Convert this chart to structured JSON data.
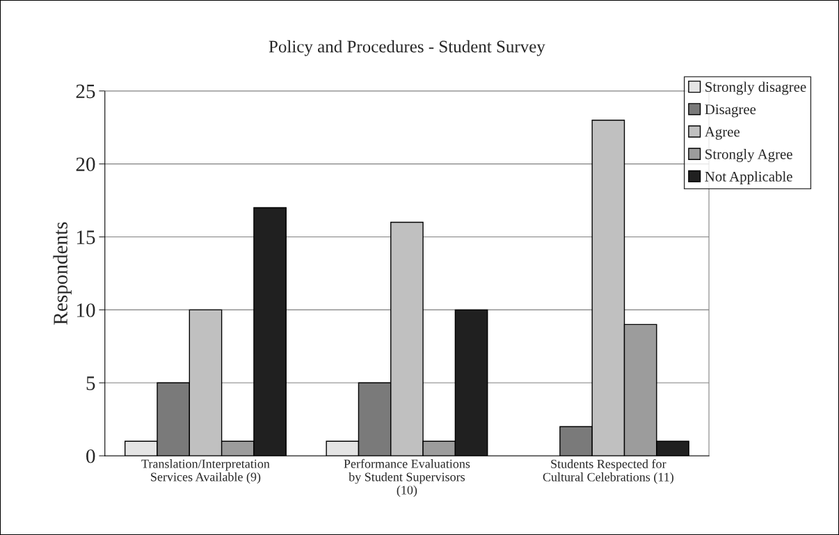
{
  "chart_data": {
    "type": "bar",
    "title": "Policy and Procedures - Student Survey",
    "ylabel": "Respondents",
    "categories": [
      "Translation/Interpretation\nServices Available (9)",
      "Performance Evaluations\nby Student Supervisors\n(10)",
      "Students Respected for\nCultural Celebrations (11)"
    ],
    "series": [
      {
        "name": "Strongly disagree",
        "color": "#e4e4e4",
        "values": [
          1,
          1,
          null
        ]
      },
      {
        "name": "Disagree",
        "color": "#7a7a7a",
        "values": [
          5,
          5,
          2
        ]
      },
      {
        "name": "Agree",
        "color": "#c0c0c0",
        "values": [
          10,
          16,
          23
        ]
      },
      {
        "name": "Strongly Agree",
        "color": "#9c9c9c",
        "values": [
          1,
          1,
          9
        ]
      },
      {
        "name": "Not Applicable",
        "color": "#202020",
        "values": [
          17,
          10,
          1
        ]
      }
    ],
    "ylim": [
      0,
      25
    ],
    "yticks": [
      0,
      5,
      10,
      15,
      20,
      25
    ],
    "grid": "y",
    "legend": "top right"
  }
}
